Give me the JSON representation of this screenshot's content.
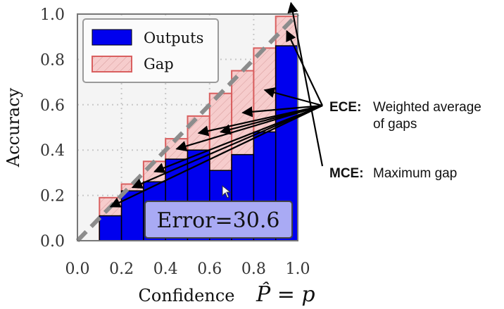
{
  "chart_data": {
    "type": "bar",
    "x_tick_labels": [
      "0.0",
      "0.2",
      "0.4",
      "0.6",
      "0.8",
      "1.0"
    ],
    "y_tick_labels": [
      "0.0",
      "0.2",
      "0.4",
      "0.6",
      "0.8",
      "1.0"
    ],
    "xlim": [
      0,
      1
    ],
    "ylim": [
      0,
      1
    ],
    "xlabel": "Confidence",
    "xlabel_math": "P̂ = p",
    "ylabel": "Accuracy",
    "grid": true,
    "legend_placement": "top-left",
    "bins": [
      0.05,
      0.15,
      0.25,
      0.35,
      0.45,
      0.55,
      0.65,
      0.75,
      0.85,
      0.95
    ],
    "series": [
      {
        "name": "Outputs",
        "color": "#0000ee",
        "values": [
          0.0,
          0.11,
          0.22,
          0.26,
          0.36,
          0.4,
          0.31,
          0.38,
          0.48,
          0.86
        ]
      },
      {
        "name": "Gap",
        "color": "#f4c2c2",
        "edge_color": "#d95f5f",
        "values": [
          0.0,
          0.19,
          0.25,
          0.35,
          0.45,
          0.55,
          0.65,
          0.75,
          0.85,
          0.99
        ]
      }
    ],
    "diagonal": {
      "style": "dashed",
      "color": "#888888"
    },
    "error_box": {
      "label": "Error=30.6",
      "value": 30.6
    },
    "annotations": {
      "ece_label": "ECE:",
      "ece_line1": "Weighted average",
      "ece_line2": "of gaps",
      "mce_label": "MCE:",
      "mce_text": "Maximum gap"
    }
  }
}
